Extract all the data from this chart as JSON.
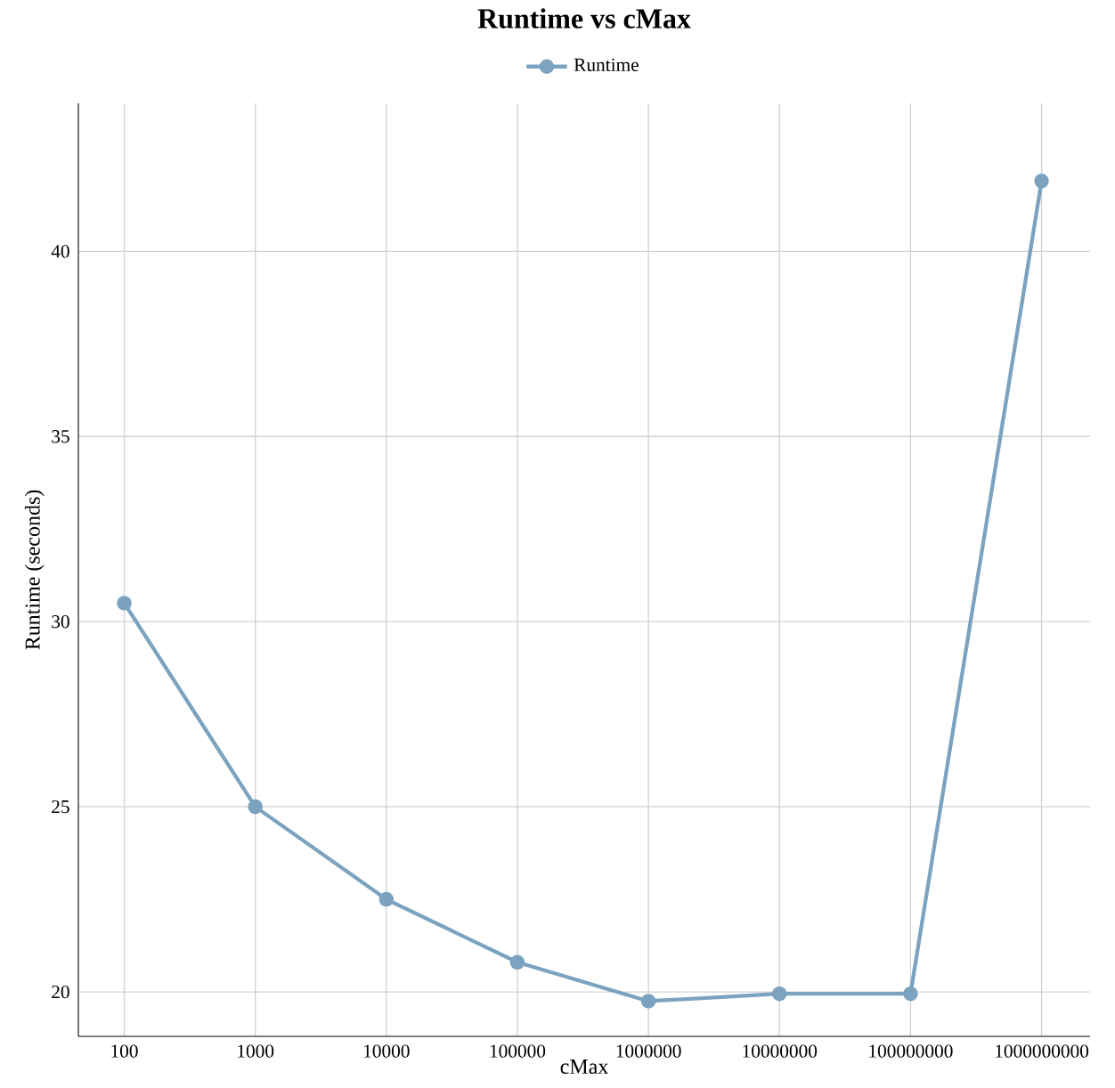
{
  "chart_data": {
    "type": "line",
    "title": "Runtime vs cMax",
    "xlabel": "cMax",
    "ylabel": "Runtime (seconds)",
    "categories": [
      "100",
      "1000",
      "10000",
      "100000",
      "1000000",
      "10000000",
      "100000000",
      "1000000000"
    ],
    "series": [
      {
        "name": "Runtime",
        "color": "#7ba3bf",
        "values": [
          30.5,
          25.0,
          22.5,
          20.8,
          19.75,
          19.95,
          19.95,
          41.9
        ]
      }
    ],
    "ylim": [
      18.8,
      44.0
    ],
    "yticks": [
      20,
      25,
      30,
      35,
      40
    ],
    "grid": true,
    "legend": "top",
    "marker": "circle",
    "line_style": "solid"
  }
}
